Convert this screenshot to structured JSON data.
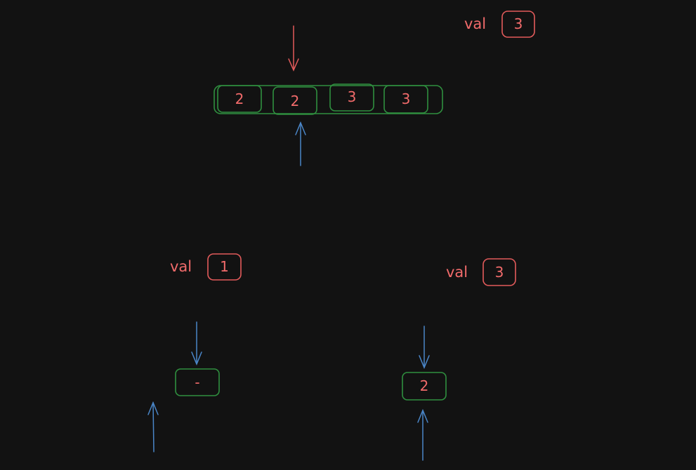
{
  "colors": {
    "background": "#121212",
    "text": "#f26b6b",
    "box_green": "#2f8f3f",
    "arrow_blue": "#4a86c8",
    "arrow_red": "#e35b5b"
  },
  "top": {
    "val_label": "val",
    "val_value": "3",
    "array": [
      "2",
      "2",
      "3",
      "3"
    ]
  },
  "left": {
    "val_label": "val",
    "val_value": "1",
    "cell": "-"
  },
  "right": {
    "val_label": "val",
    "val_value": "3",
    "cell": "2"
  }
}
